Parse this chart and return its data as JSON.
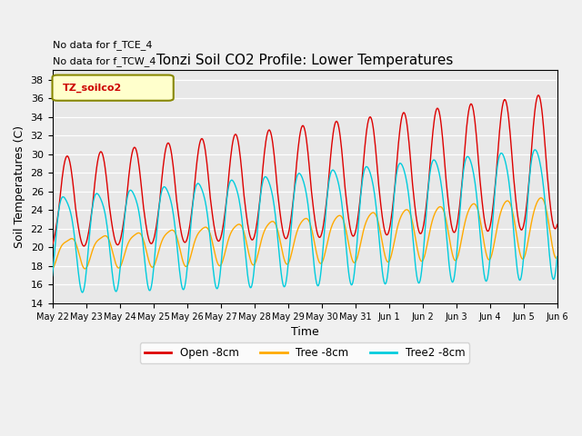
{
  "title": "Tonzi Soil CO2 Profile: Lower Temperatures",
  "xlabel": "Time",
  "ylabel": "Soil Temperatures (C)",
  "ylim": [
    14,
    39
  ],
  "yticks": [
    14,
    16,
    18,
    20,
    22,
    24,
    26,
    28,
    30,
    32,
    34,
    36,
    38
  ],
  "background_color": "#e8e8e8",
  "fig_color": "#f0f0f0",
  "annotations": [
    "No data for f_TCE_4",
    "No data for f_TCW_4"
  ],
  "legend_box_label": "TZ_soilco2",
  "x_tick_labels": [
    "May 22",
    "May 23",
    "May 24",
    "May 25",
    "May 26",
    "May 27",
    "May 28",
    "May 29",
    "May 30",
    "May 31",
    "Jun 1",
    "Jun 2",
    "Jun 3",
    "Jun 4",
    "Jun 5",
    "Jun 6"
  ],
  "open_color": "#dd0000",
  "tree_color": "#ffaa00",
  "tree2_color": "#00ccdd",
  "open_label": "Open -8cm",
  "tree_label": "Tree -8cm",
  "tree2_label": "Tree2 -8cm",
  "n_days": 15,
  "pts_per_day": 48
}
